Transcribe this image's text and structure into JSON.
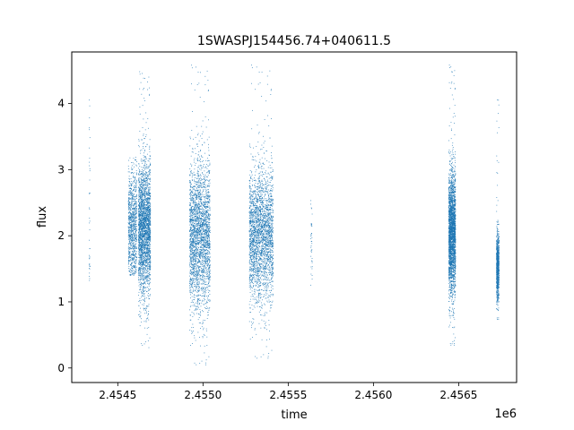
{
  "chart_data": {
    "type": "scatter",
    "title": "1SWASPJ154456.74+040611.5",
    "xlabel": "time",
    "ylabel": "flux",
    "x_offset_label": "1e6",
    "xlim": [
      2454230,
      2456840
    ],
    "ylim": [
      -0.22,
      4.78
    ],
    "x_ticks": [
      2454500,
      2455000,
      2455500,
      2456000,
      2456500
    ],
    "x_tick_labels": [
      "2.4545",
      "2.4550",
      "2.4555",
      "2.4560",
      "2.4565"
    ],
    "y_ticks": [
      0,
      1,
      2,
      3,
      4
    ],
    "y_tick_labels": [
      "0",
      "1",
      "2",
      "3",
      "4"
    ],
    "grid": false,
    "legend": "none",
    "marker_color": "#1f77b4",
    "series": [
      {
        "segments": [
          {
            "x": [
              2454330,
              2454335
            ],
            "y_center": 2.3,
            "y_spread": 1.2,
            "y_range": [
              1.3,
              4.4
            ],
            "density": "sparse"
          },
          {
            "x": [
              2454560,
              2454610
            ],
            "y_center": 2.1,
            "y_spread": 0.45,
            "y_range": [
              1.4,
              3.2
            ],
            "density": "medium"
          },
          {
            "x": [
              2454620,
              2454690
            ],
            "y_center": 2.1,
            "y_spread": 0.5,
            "y_range": [
              0.3,
              4.5
            ],
            "density": "dense"
          },
          {
            "x": [
              2454920,
              2455040
            ],
            "y_center": 2.0,
            "y_spread": 0.55,
            "y_range": [
              0.0,
              4.6
            ],
            "density": "dense"
          },
          {
            "x": [
              2455270,
              2455410
            ],
            "y_center": 2.0,
            "y_spread": 0.5,
            "y_range": [
              0.1,
              4.6
            ],
            "density": "dense"
          },
          {
            "x": [
              2455630,
              2455640
            ],
            "y_center": 1.95,
            "y_spread": 0.3,
            "y_range": [
              1.1,
              2.8
            ],
            "density": "sparse"
          },
          {
            "x": [
              2456440,
              2456480
            ],
            "y_center": 2.05,
            "y_spread": 0.45,
            "y_range": [
              0.3,
              4.6
            ],
            "density": "dense"
          },
          {
            "x": [
              2456720,
              2456735
            ],
            "y_center": 1.55,
            "y_spread": 0.25,
            "y_range": [
              0.7,
              4.3
            ],
            "density": "medium"
          }
        ]
      }
    ]
  }
}
